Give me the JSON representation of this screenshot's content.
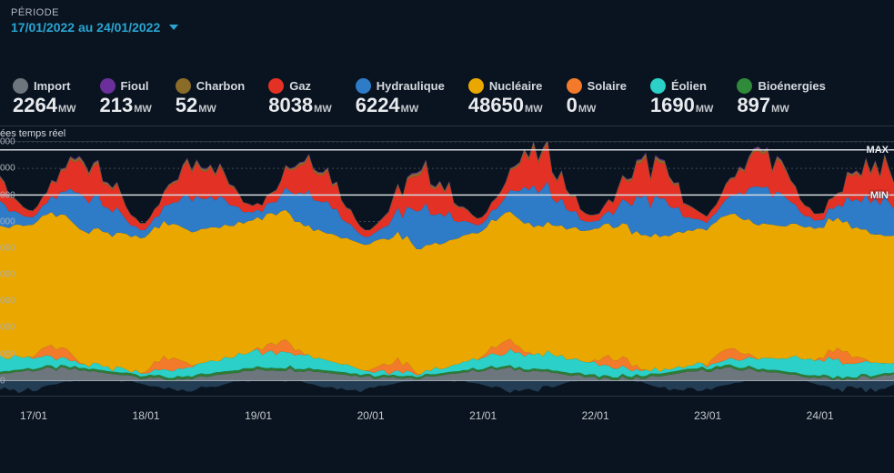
{
  "period": {
    "label": "PÉRIODE",
    "value": "17/01/2022 au 24/01/2022"
  },
  "legend": {
    "unit": "MW",
    "items": [
      {
        "key": "import",
        "label": "Import",
        "value": "2264",
        "color": "#6e767d"
      },
      {
        "key": "fioul",
        "label": "Fioul",
        "value": "213",
        "color": "#6a2f9a"
      },
      {
        "key": "charbon",
        "label": "Charbon",
        "value": "52",
        "color": "#8a6b28"
      },
      {
        "key": "gaz",
        "label": "Gaz",
        "value": "8038",
        "color": "#e33225"
      },
      {
        "key": "hydraulique",
        "label": "Hydraulique",
        "value": "6224",
        "color": "#2e7bc8"
      },
      {
        "key": "nucleaire",
        "label": "Nucléaire",
        "value": "48650",
        "color": "#e9a700"
      },
      {
        "key": "solaire",
        "label": "Solaire",
        "value": "0",
        "color": "#f27a2a"
      },
      {
        "key": "eolien",
        "label": "Éolien",
        "value": "1690",
        "color": "#2bd0c8"
      },
      {
        "key": "bioenergies",
        "label": "Bioénergies",
        "value": "897",
        "color": "#2f8a3a"
      }
    ]
  },
  "chart": {
    "title": "ées temps réel",
    "type": "stacked-area",
    "background_color": "#0a1420",
    "grid_color": "#404a54",
    "grid_dash": "2,3",
    "y": {
      "min": 0,
      "max": 90000,
      "tick_step": 10000,
      "unit": "MW",
      "label_suffix": "000",
      "zero_label": "0"
    },
    "x": {
      "labels": [
        "17/01",
        "18/01",
        "19/01",
        "20/01",
        "21/01",
        "22/01",
        "23/01",
        "24/01"
      ],
      "points_per_day": 24
    },
    "reference_lines": {
      "max": {
        "value": 87000,
        "label": "MAX",
        "color": "#d5d9de"
      },
      "min": {
        "value": 70000,
        "label": "MIN",
        "color": "#d5d9de"
      }
    },
    "layers_order_bottom_to_top": [
      "import",
      "bioenergies",
      "eolien",
      "solaire",
      "nucleaire",
      "hydraulique",
      "gaz",
      "charbon",
      "fioul"
    ],
    "layer_colors": {
      "import": "#6e767d",
      "bioenergies": "#2f7a34",
      "eolien": "#2bd0c8",
      "solaire": "#f27a2a",
      "nucleaire": "#e9a700",
      "hydraulique": "#2e7bc8",
      "gaz": "#e33225",
      "charbon": "#8a6b28",
      "fioul": "#6a2f9a"
    },
    "series_ranges": {
      "import": {
        "base": 2500,
        "amp": 1800,
        "period": 48
      },
      "bioenergies": {
        "base": 900,
        "amp": 120,
        "period": 96
      },
      "eolien": {
        "base": 3500,
        "amp": 2800,
        "period": 60
      },
      "solaire": {
        "base": 0,
        "peak": 4200
      },
      "nucleaire": {
        "base": 49000,
        "amp": 2500,
        "period": 120
      },
      "hydraulique": {
        "base": 9500,
        "amp": 4500,
        "period": 24
      },
      "gaz": {
        "base": 7500,
        "amp": 5500,
        "period": 24
      },
      "charbon": {
        "base": 600,
        "amp": 500,
        "period": 24
      },
      "fioul": {
        "base": 250,
        "amp": 150,
        "period": 24
      }
    },
    "negative_area": {
      "color": "#25415a",
      "min": -6000
    }
  }
}
